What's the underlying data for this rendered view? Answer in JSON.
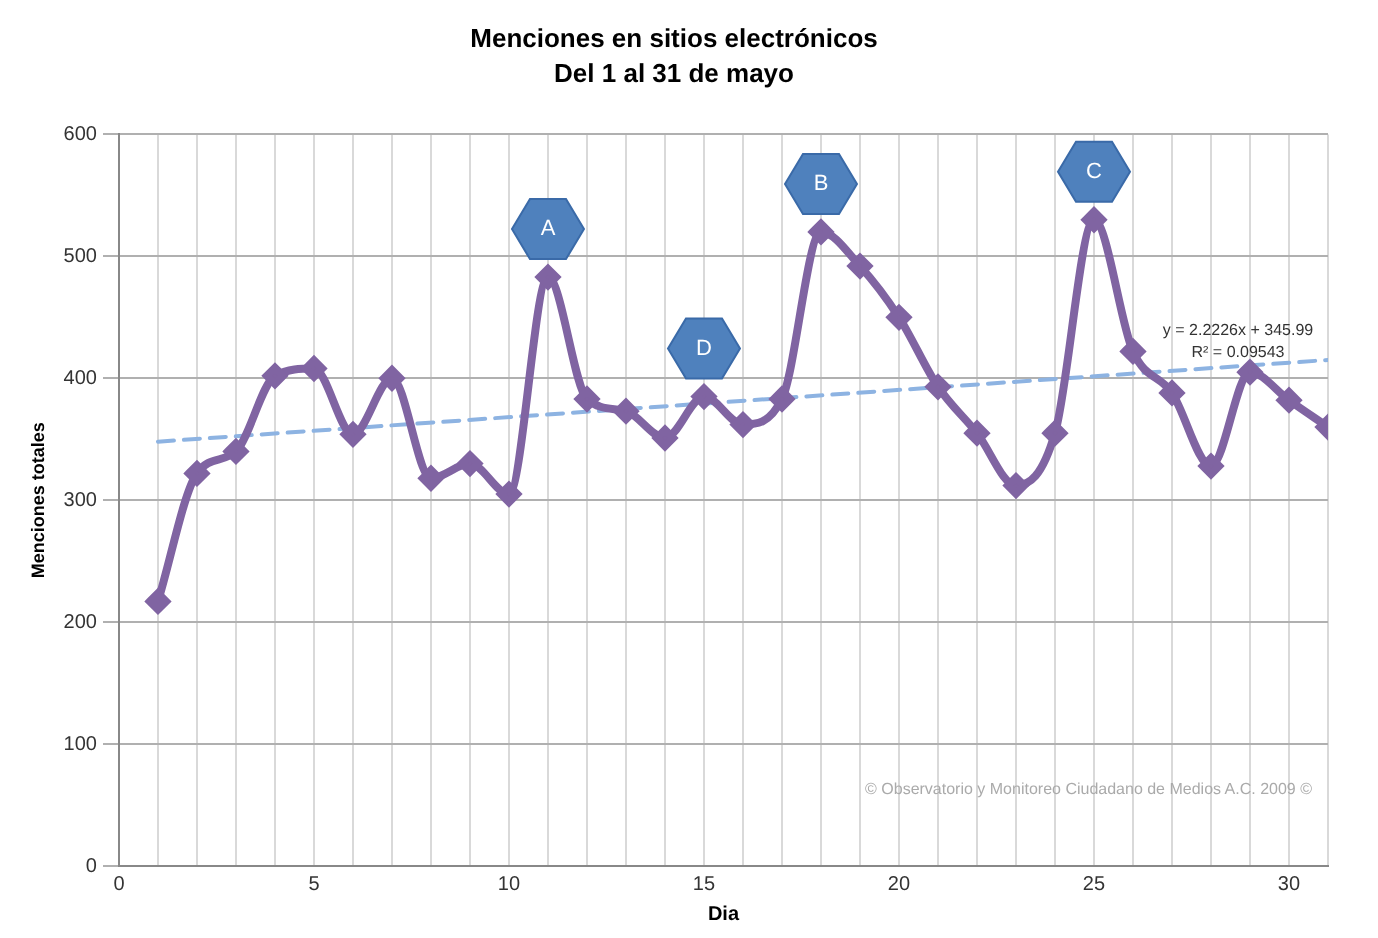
{
  "chart_data": {
    "type": "line",
    "title": "Menciones en sitios electrónicos",
    "subtitle": "Del 1 al 31 de mayo",
    "xlabel": "Dia",
    "ylabel": "Menciones totales",
    "x": [
      1,
      2,
      3,
      4,
      5,
      6,
      7,
      8,
      9,
      10,
      11,
      12,
      13,
      14,
      15,
      16,
      17,
      18,
      19,
      20,
      21,
      22,
      23,
      24,
      25,
      26,
      27,
      28,
      29,
      30,
      31
    ],
    "series": [
      {
        "color": "#8064a2",
        "marker": "diamond",
        "values": [
          217,
          322,
          340,
          402,
          408,
          354,
          400,
          318,
          330,
          305,
          483,
          383,
          373,
          351,
          385,
          362,
          383,
          520,
          492,
          450,
          393,
          355,
          312,
          355,
          530,
          422,
          388,
          328,
          405,
          382,
          360
        ]
      },
      {
        "type": "line",
        "color": "#8db3e2",
        "line_style": "dashed",
        "marker": "none",
        "x": [
          1,
          31
        ],
        "values": [
          348,
          415
        ]
      }
    ],
    "xlim": [
      0,
      31
    ],
    "xticks": [
      0,
      {
        "value": 1,
        "label": null
      },
      {
        "value": 2,
        "label": null
      },
      {
        "value": 3,
        "label": null
      },
      {
        "value": 4,
        "label": null
      },
      5,
      {
        "value": 6,
        "label": null
      },
      {
        "value": 7,
        "label": null
      },
      {
        "value": 8,
        "label": null
      },
      {
        "value": 9,
        "label": null
      },
      10,
      {
        "value": 11,
        "label": null
      },
      {
        "value": 12,
        "label": null
      },
      {
        "value": 13,
        "label": null
      },
      {
        "value": 14,
        "label": null
      },
      15,
      {
        "value": 16,
        "label": null
      },
      {
        "value": 17,
        "label": null
      },
      {
        "value": 18,
        "label": null
      },
      {
        "value": 19,
        "label": null
      },
      20,
      {
        "value": 21,
        "label": null
      },
      {
        "value": 22,
        "label": null
      },
      {
        "value": 23,
        "label": null
      },
      {
        "value": 24,
        "label": null
      },
      25,
      {
        "value": 26,
        "label": null
      },
      {
        "value": 27,
        "label": null
      },
      {
        "value": 28,
        "label": null
      },
      {
        "value": 29,
        "label": null
      },
      30,
      {
        "value": 31,
        "label": null
      }
    ],
    "ylim": [
      0,
      600
    ],
    "yticks": [
      0,
      100,
      200,
      300,
      400,
      500,
      600
    ],
    "grid": true,
    "legend": false,
    "annotations": [
      {
        "text": "A",
        "x": 11,
        "y": 483
      },
      {
        "text": "D",
        "x": 15,
        "y": 385
      },
      {
        "text": "B",
        "x": 18,
        "y": 520
      },
      {
        "text": "C",
        "x": 25,
        "y": 530
      },
      "y = 2.2226x + 345.99",
      "R² = 0.09543",
      "© Observatorio y Monitoreo Ciudadano de Medios A.C. 2009 ©"
    ]
  }
}
